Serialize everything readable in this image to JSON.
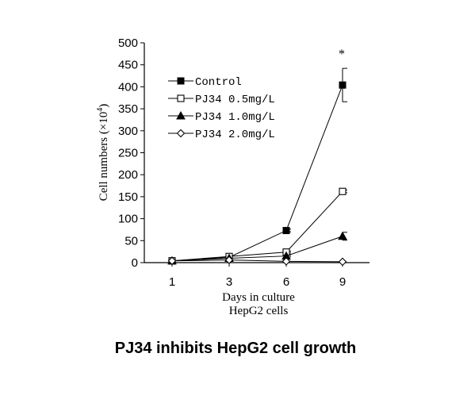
{
  "caption": "PJ34 inhibits HepG2 cell growth",
  "chart_data": {
    "type": "line",
    "title": "",
    "xlabel": "Days in culture",
    "xlabel2": "HepG2 cells",
    "ylabel_prefix": "Cell numbers (×10",
    "ylabel_exp": "4",
    "ylabel_suffix": ")",
    "x": [
      1,
      3,
      6,
      9
    ],
    "categories": [
      "1",
      "3",
      "6",
      "9"
    ],
    "ylim": [
      0,
      500
    ],
    "yticks": [
      0,
      50,
      100,
      150,
      200,
      250,
      300,
      350,
      400,
      450,
      500
    ],
    "grid": false,
    "legend_position": "top-left",
    "annotation": {
      "text": "*",
      "x": 9
    },
    "series": [
      {
        "name": "Control",
        "marker": "square-filled",
        "values": [
          4,
          12,
          73,
          404
        ],
        "errors": [
          0,
          0,
          3,
          38
        ]
      },
      {
        "name": "PJ34  0.5mg/L",
        "marker": "square-open",
        "values": [
          4,
          14,
          24,
          162
        ],
        "errors": [
          0,
          0,
          2,
          3
        ]
      },
      {
        "name": "PJ34  1.0mg/L",
        "marker": "triangle-filled",
        "values": [
          4,
          10,
          15,
          60
        ],
        "errors": [
          0,
          0,
          2,
          9
        ]
      },
      {
        "name": "PJ34  2.0mg/L",
        "marker": "diamond-open",
        "values": [
          4,
          6,
          3,
          2
        ],
        "errors": [
          0,
          0,
          0,
          0
        ]
      }
    ]
  }
}
